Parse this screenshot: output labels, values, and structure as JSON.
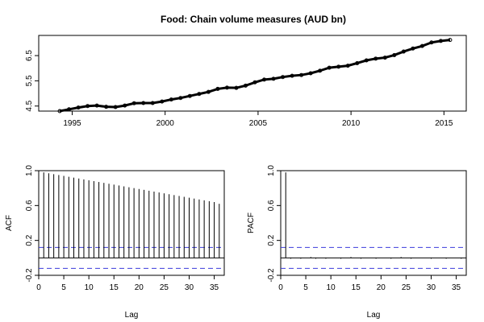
{
  "chart_data": [
    {
      "type": "line",
      "title": "Food: Chain volume measures (AUD bn)",
      "xlabel": "",
      "ylabel": "",
      "xlim": [
        1993.2,
        2016.2
      ],
      "ylim": [
        4.3,
        7.3
      ],
      "x_ticks": [
        "1995",
        "2000",
        "2005",
        "2010",
        "2015"
      ],
      "y_ticks": [
        "4.5",
        "5.5",
        "6.5"
      ],
      "series": [
        {
          "x": [
            1994.33,
            1994.83,
            1995.33,
            1995.83,
            1996.33,
            1996.83,
            1997.33,
            1997.83,
            1998.33,
            1998.83,
            1999.33,
            1999.83,
            2000.33,
            2000.83,
            2001.33,
            2001.83,
            2002.33,
            2002.83,
            2003.33,
            2003.83,
            2004.33,
            2004.83,
            2005.33,
            2005.83,
            2006.33,
            2006.83,
            2007.33,
            2007.83,
            2008.33,
            2008.83,
            2009.33,
            2009.83,
            2010.33,
            2010.83,
            2011.33,
            2011.83,
            2012.33,
            2012.83,
            2013.33,
            2013.83,
            2014.33,
            2014.83,
            2015.33
          ],
          "y": [
            4.3,
            4.37,
            4.44,
            4.5,
            4.52,
            4.47,
            4.46,
            4.52,
            4.61,
            4.62,
            4.62,
            4.68,
            4.76,
            4.82,
            4.9,
            4.98,
            5.06,
            5.18,
            5.23,
            5.22,
            5.31,
            5.44,
            5.55,
            5.58,
            5.65,
            5.7,
            5.73,
            5.8,
            5.9,
            6.02,
            6.06,
            6.1,
            6.2,
            6.31,
            6.38,
            6.42,
            6.52,
            6.66,
            6.78,
            6.88,
            7.02,
            7.08,
            7.12
          ]
        }
      ]
    },
    {
      "type": "bar",
      "xlabel": "Lag",
      "ylabel": "ACF",
      "xlim": [
        0,
        37
      ],
      "ylim": [
        -0.2,
        1.0
      ],
      "x_ticks": [
        "0",
        "5",
        "10",
        "15",
        "20",
        "25",
        "30",
        "35"
      ],
      "y_ticks": [
        "-0.2",
        "0.2",
        "0.6",
        "1.0"
      ],
      "lags": [
        1,
        2,
        3,
        4,
        5,
        6,
        7,
        8,
        9,
        10,
        11,
        12,
        13,
        14,
        15,
        16,
        17,
        18,
        19,
        20,
        21,
        22,
        23,
        24,
        25,
        26,
        27,
        28,
        29,
        30,
        31,
        32,
        33,
        34,
        35,
        36
      ],
      "values": [
        0.98,
        0.97,
        0.96,
        0.95,
        0.94,
        0.93,
        0.92,
        0.91,
        0.9,
        0.89,
        0.88,
        0.87,
        0.86,
        0.85,
        0.84,
        0.83,
        0.82,
        0.81,
        0.8,
        0.79,
        0.78,
        0.77,
        0.76,
        0.75,
        0.74,
        0.73,
        0.72,
        0.71,
        0.7,
        0.69,
        0.68,
        0.67,
        0.66,
        0.65,
        0.64,
        0.62
      ],
      "ci": [
        0.12,
        -0.12
      ]
    },
    {
      "type": "bar",
      "xlabel": "Lag",
      "ylabel": "PACF",
      "xlim": [
        0,
        37
      ],
      "ylim": [
        -0.2,
        1.0
      ],
      "x_ticks": [
        "0",
        "5",
        "10",
        "15",
        "20",
        "25",
        "30",
        "35"
      ],
      "y_ticks": [
        "-0.2",
        "0.2",
        "0.6",
        "1.0"
      ],
      "lags": [
        1,
        2,
        3,
        4,
        5,
        6,
        7,
        8,
        9,
        10,
        11,
        12,
        13,
        14,
        15,
        16,
        17,
        18,
        19,
        20,
        21,
        22,
        23,
        24,
        25,
        26,
        27,
        28,
        29,
        30,
        31,
        32,
        33,
        34,
        35,
        36
      ],
      "values": [
        0.98,
        -0.01,
        0.0,
        -0.01,
        0.0,
        0.01,
        -0.01,
        0.0,
        -0.01,
        0.0,
        0.0,
        -0.01,
        0.0,
        0.01,
        0.0,
        -0.01,
        0.0,
        0.0,
        -0.01,
        0.0,
        0.0,
        -0.01,
        0.0,
        0.01,
        0.0,
        -0.01,
        0.0,
        0.0,
        0.0,
        -0.01,
        0.0,
        0.0,
        -0.01,
        0.0,
        0.0,
        -0.01
      ],
      "ci": [
        0.12,
        -0.12
      ]
    }
  ]
}
